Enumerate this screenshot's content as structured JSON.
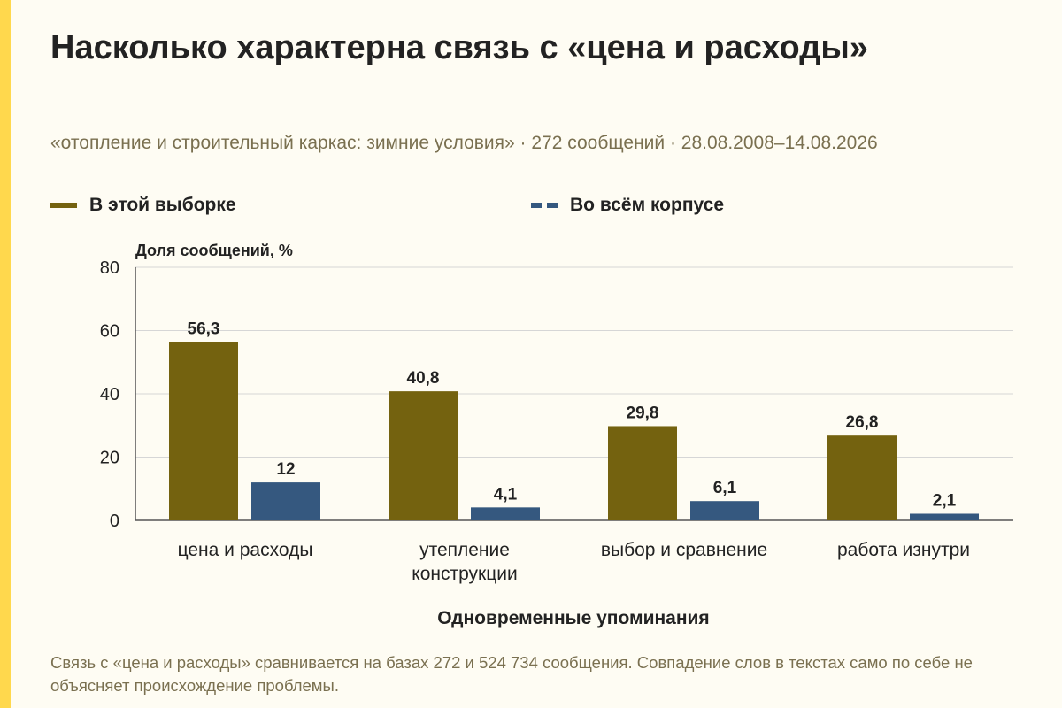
{
  "title": "Насколько характерна связь с «цена и расходы»",
  "subtitle": "«отопление и строительный каркас: зимние условия» · 272 сообщений · 28.08.2008–14.08.2026",
  "footnote": "Связь с «цена и расходы» сравнивается на базах 272 и 524 734 сообщения. Совпадение слов в текстах само по себе не объясняет происхождение проблемы.",
  "colors": {
    "background": "#fefcf3",
    "accent": "#ffd84d",
    "series_1": "#74620f",
    "series_2": "#35587f",
    "grid": "#d6d6d6",
    "text": "#222222",
    "muted_text": "#7a7050"
  },
  "chart_data": {
    "type": "bar",
    "categories": [
      [
        "цена и расходы"
      ],
      [
        "утепление",
        "конструкции"
      ],
      [
        "выбор и сравнение"
      ],
      [
        "работа изнутри"
      ]
    ],
    "series": [
      {
        "name": "В этой выборке",
        "values": [
          56.3,
          40.8,
          29.8,
          26.8
        ],
        "labels": [
          "56,3",
          "40,8",
          "29,8",
          "26,8"
        ]
      },
      {
        "name": "Во всём корпусе",
        "values": [
          12,
          4.1,
          6.1,
          2.1
        ],
        "labels": [
          "12",
          "4,1",
          "6,1",
          "2,1"
        ]
      }
    ],
    "ylabel": "Доля сообщений, %",
    "xlabel": "Одновременные упоминания",
    "ylim": [
      0,
      80
    ],
    "yticks": [
      0,
      20,
      40,
      60,
      80
    ],
    "grid": true,
    "legend": "top"
  }
}
